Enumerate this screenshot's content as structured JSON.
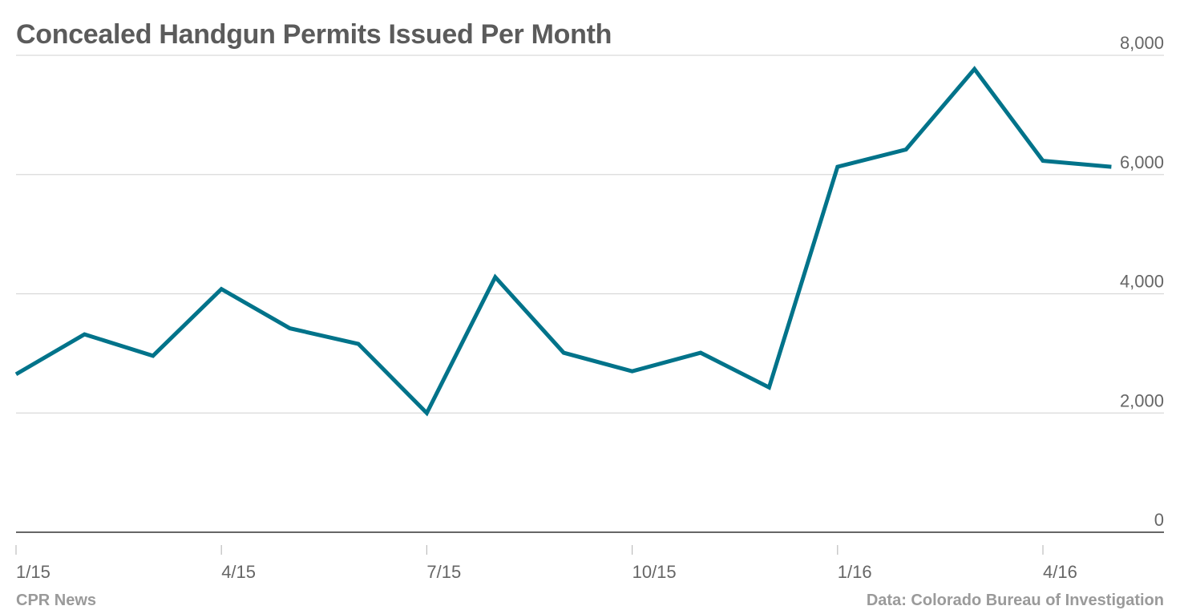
{
  "chart_data": {
    "type": "line",
    "title": "Concealed Handgun Permits Issued Per Month",
    "xlabel": "",
    "ylabel": "",
    "ylim": [
      0,
      8000
    ],
    "y_ticks": [
      "0",
      "2,000",
      "4,000",
      "6,000",
      "8,000"
    ],
    "x_tick_labels": [
      "1/15",
      "4/15",
      "7/15",
      "10/15",
      "1/16",
      "4/16"
    ],
    "x": [
      "1/15",
      "2/15",
      "3/15",
      "4/15",
      "5/15",
      "6/15",
      "7/15",
      "8/15",
      "9/15",
      "10/15",
      "11/15",
      "12/15",
      "1/16",
      "2/16",
      "3/16",
      "4/16",
      "5/16"
    ],
    "series": [
      {
        "values": [
          2650,
          3320,
          2960,
          4080,
          3420,
          3160,
          2000,
          4280,
          3010,
          2700,
          3010,
          2430,
          6130,
          6420,
          7770,
          6230,
          6130
        ],
        "color": "#00738a"
      }
    ],
    "grid": true,
    "y_axis_position": "right",
    "legend": "none"
  },
  "footer": {
    "source_left": "CPR News",
    "source_right": "Data: Colorado Bureau of Investigation"
  }
}
